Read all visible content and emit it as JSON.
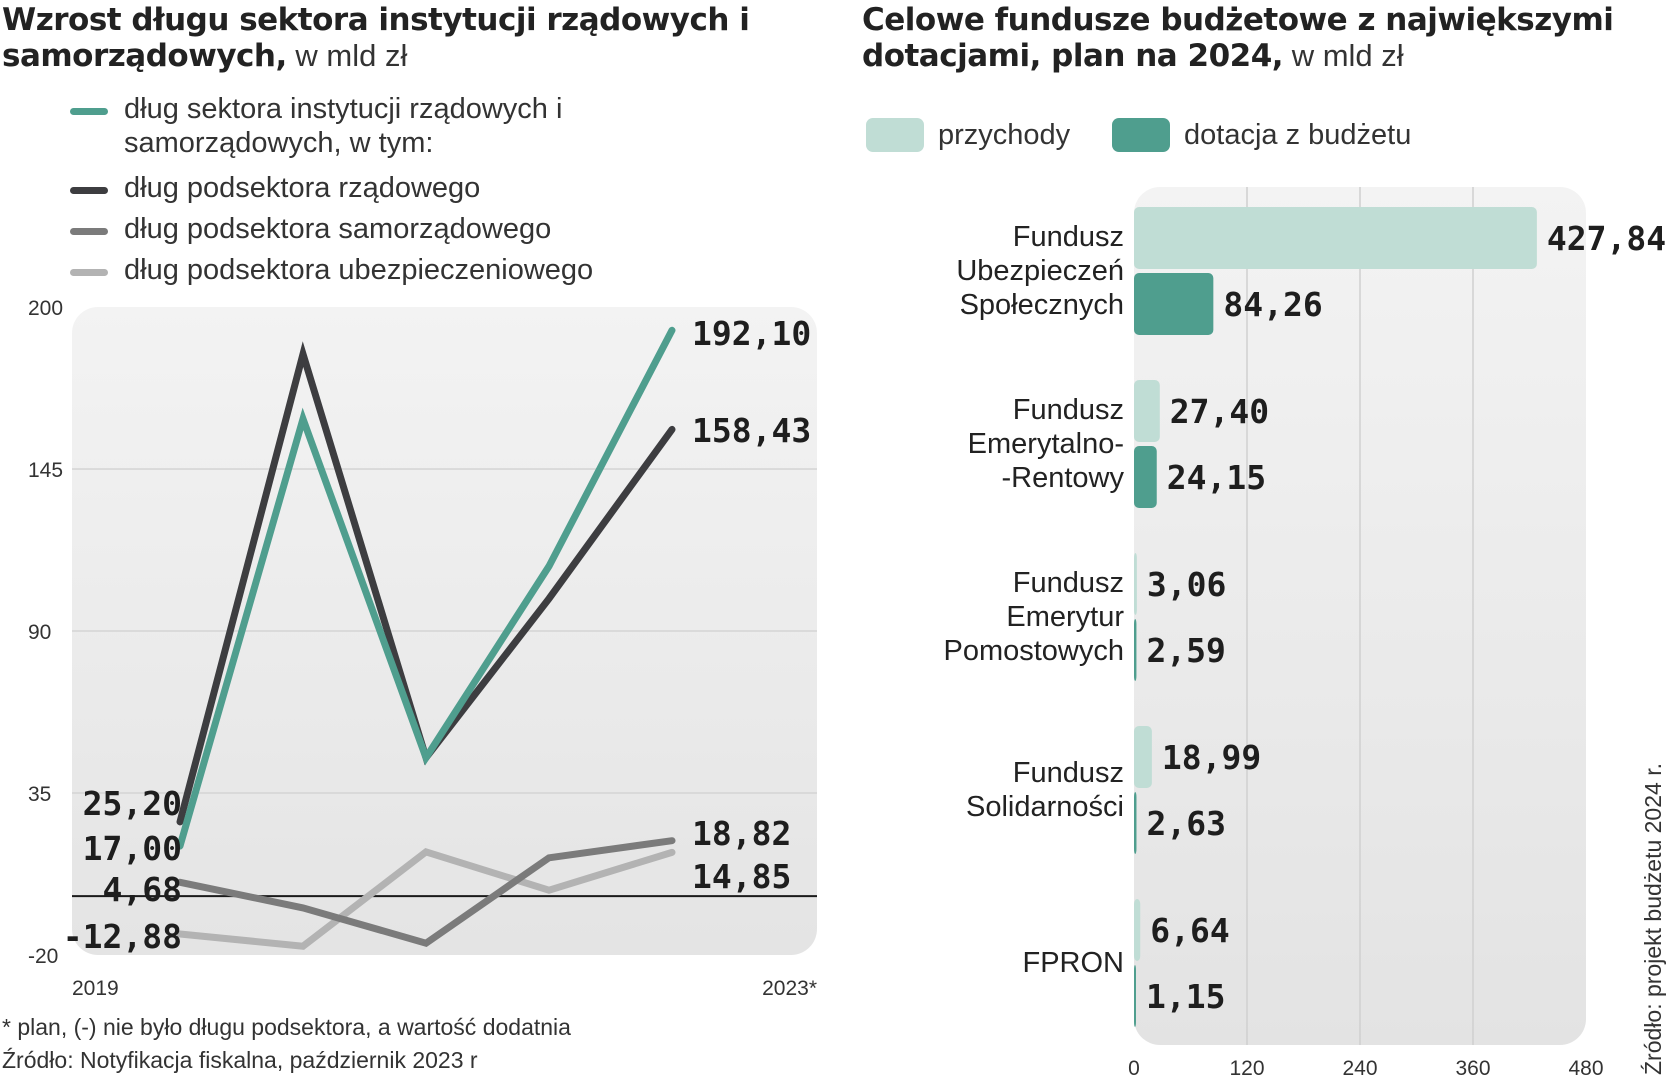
{
  "left_chart": {
    "title_bold": "Wzrost długu sektora instytucji rządowych i samorządowych,",
    "title_unit": " w mld zł",
    "footnote": "* plan, (-) nie było długu podsektora, a wartość dodatnia",
    "source": "Źródło: Notyfikacja fiskalna, październik 2023 r"
  },
  "right_chart": {
    "title_bold": "Celowe fundusze budżetowe z największymi dotacjami, plan na 2024,",
    "title_unit": " w mld zł",
    "source": "Źródło: projekt budżetu 2024 r."
  },
  "chart_data": [
    {
      "type": "line",
      "x_labels": [
        "2019",
        "2023*"
      ],
      "x": [
        2019,
        2020,
        2021,
        2022,
        2023
      ],
      "ylim": [
        -20,
        200
      ],
      "yticks": [
        "200",
        "145",
        "90",
        "35",
        "-20"
      ],
      "ytick_values": [
        200,
        145,
        90,
        35,
        -20
      ],
      "grid": true,
      "legend_position": "top",
      "series": [
        {
          "name": "dług sektora instytucji rządowych i samorządowych, w tym:",
          "color": "#4f9e8e",
          "values": [
            17.0,
            162.0,
            47.0,
            112.0,
            192.1
          ],
          "labels": [
            "17,00",
            "",
            "",
            "",
            "192,10"
          ]
        },
        {
          "name": "dług podsektora rządowego",
          "color": "#3d3d40",
          "values": [
            25.2,
            184.0,
            47.0,
            101.0,
            158.43
          ],
          "labels": [
            "25,20",
            "",
            "",
            "",
            "158,43"
          ]
        },
        {
          "name": "dług podsektora samorządowego",
          "color": "#7b7b7b",
          "values": [
            4.68,
            -4.0,
            -16.0,
            13.0,
            18.82
          ],
          "labels": [
            "4,68",
            "",
            "",
            "",
            "18,82"
          ]
        },
        {
          "name": "dług podsektora ubezpieczeniowego",
          "color": "#b3b3b3",
          "values": [
            -12.88,
            -17.0,
            15.0,
            2.0,
            14.85
          ],
          "labels": [
            "-12,88",
            "",
            "",
            "",
            "14,85"
          ]
        }
      ]
    },
    {
      "type": "bar",
      "orientation": "horizontal",
      "categories": [
        "Fundusz Ubezpieczeń Społecznych",
        "Fundusz Emerytalno--Rentowy",
        "Fundusz Emerytur Pomostowych",
        "Fundusz Solidarności",
        "FPRON"
      ],
      "category_lines": [
        [
          "Fundusz",
          "Ubezpieczeń",
          "Społecznych"
        ],
        [
          "Fundusz",
          "Emerytalno-",
          "-Rentowy"
        ],
        [
          "Fundusz",
          "Emerytur",
          "Pomostowych"
        ],
        [
          "Fundusz",
          "Solidarności"
        ],
        [
          "FPRON"
        ]
      ],
      "xlim": [
        0,
        480
      ],
      "xticks": [
        "0",
        "120",
        "240",
        "360",
        "480"
      ],
      "xtick_values": [
        0,
        120,
        240,
        360,
        480
      ],
      "grid": true,
      "legend_position": "top",
      "series": [
        {
          "name": "przychody",
          "color": "#c0ddd5",
          "values": [
            427.84,
            27.4,
            3.06,
            18.99,
            6.64
          ],
          "labels": [
            "427,84",
            "27,40",
            "3,06",
            "18,99",
            "6,64"
          ]
        },
        {
          "name": "dotacja z budżetu",
          "color": "#4f9e8e",
          "values": [
            84.26,
            24.15,
            2.59,
            2.63,
            1.15
          ],
          "labels": [
            "84,26",
            "24,15",
            "2,59",
            "2,63",
            "1,15"
          ]
        }
      ]
    }
  ]
}
